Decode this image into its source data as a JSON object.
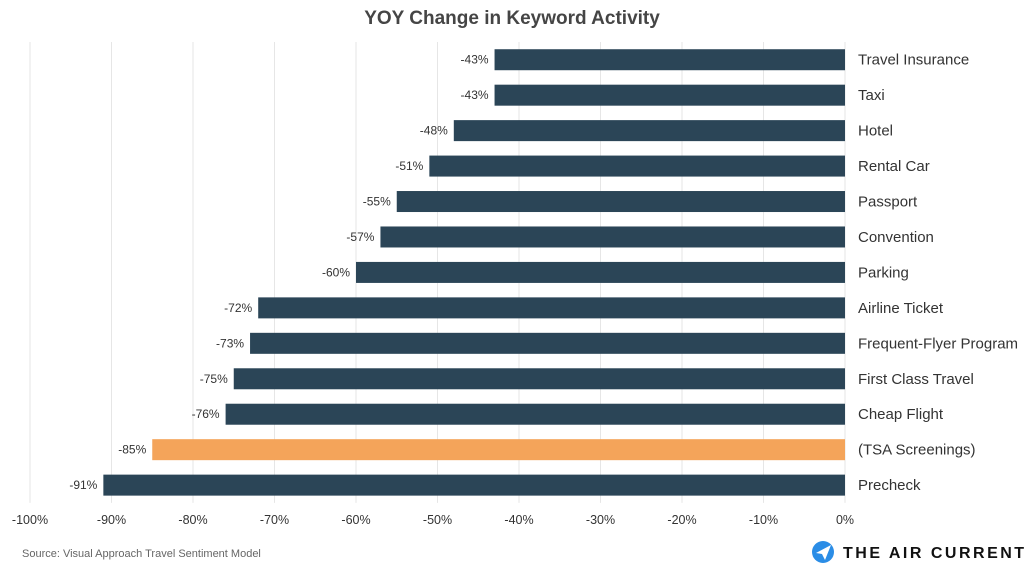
{
  "chart_data": {
    "type": "bar",
    "orientation": "horizontal",
    "title": "YOY Change in Keyword Activity",
    "categories": [
      "Travel Insurance",
      "Taxi",
      "Hotel",
      "Rental Car",
      "Passport",
      "Convention",
      "Parking",
      "Airline Ticket",
      "Frequent-Flyer Program",
      "First Class Travel",
      "Cheap Flight",
      "(TSA Screenings)",
      "Precheck"
    ],
    "values": [
      -43,
      -43,
      -48,
      -51,
      -55,
      -57,
      -60,
      -72,
      -73,
      -75,
      -76,
      -85,
      -91
    ],
    "value_labels": [
      "-43%",
      "-43%",
      "-48%",
      "-51%",
      "-55%",
      "-57%",
      "-60%",
      "-72%",
      "-73%",
      "-75%",
      "-76%",
      "-85%",
      "-91%"
    ],
    "highlight_index": 11,
    "xlim": [
      -100,
      0
    ],
    "x_ticks": [
      -100,
      -90,
      -80,
      -70,
      -60,
      -50,
      -40,
      -30,
      -20,
      -10,
      0
    ],
    "x_tick_labels": [
      "-100%",
      "-90%",
      "-80%",
      "-70%",
      "-60%",
      "-50%",
      "-40%",
      "-30%",
      "-20%",
      "-10%",
      "0%"
    ],
    "grid": true,
    "colors": {
      "bar": "#2b4557",
      "highlight": "#f4a45a",
      "grid": "#e6e6e6"
    }
  },
  "footer": {
    "source": "Source: Visual Approach Travel Sentiment Model",
    "brand": "THE AIR CURRENT",
    "brand_icon": "paper-plane-icon"
  }
}
